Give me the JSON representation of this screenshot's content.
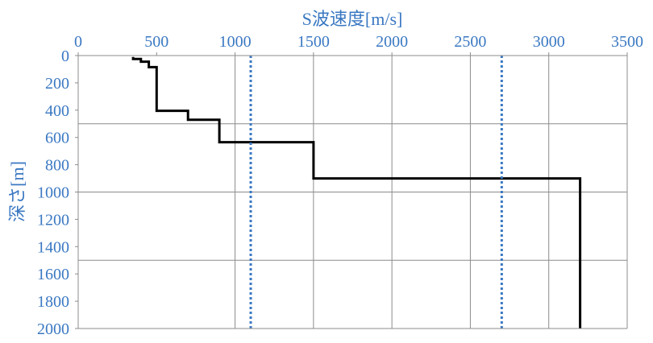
{
  "chart_data": {
    "type": "line",
    "title": "",
    "xlabel": "S波速度[m/s]",
    "ylabel": "深さ[m]",
    "xlim": [
      0,
      3500
    ],
    "ylim": [
      0,
      2000
    ],
    "y_inverted": true,
    "x_axis_position": "top",
    "x_ticks": [
      "0",
      "500",
      "1000",
      "1500",
      "2000",
      "2500",
      "3000",
      "3500"
    ],
    "y_ticks": [
      "0",
      "200",
      "400",
      "600",
      "800",
      "1000",
      "1200",
      "1400",
      "1600",
      "1800",
      "2000"
    ],
    "grid": true,
    "gridlines_x": [
      1000,
      1500,
      2000,
      2500,
      3000,
      3500
    ],
    "gridlines_y": [
      500,
      1000,
      1500
    ],
    "colors": {
      "axis_text": "#3a78c2",
      "profile": "#000000",
      "reference": "#3a78c2",
      "grid": "#8c8c8c"
    },
    "series": [
      {
        "style": "solid-step",
        "points": [
          [
            350,
            10
          ],
          [
            350,
            25
          ],
          [
            400,
            25
          ],
          [
            400,
            45
          ],
          [
            450,
            45
          ],
          [
            450,
            85
          ],
          [
            500,
            85
          ],
          [
            500,
            405
          ],
          [
            700,
            405
          ],
          [
            700,
            470
          ],
          [
            900,
            470
          ],
          [
            900,
            635
          ],
          [
            1500,
            635
          ],
          [
            1500,
            900
          ],
          [
            3200,
            900
          ],
          [
            3200,
            2000
          ]
        ]
      },
      {
        "style": "dotted-vertical",
        "x": 1100
      },
      {
        "style": "dotted-vertical",
        "x": 2700
      }
    ]
  }
}
